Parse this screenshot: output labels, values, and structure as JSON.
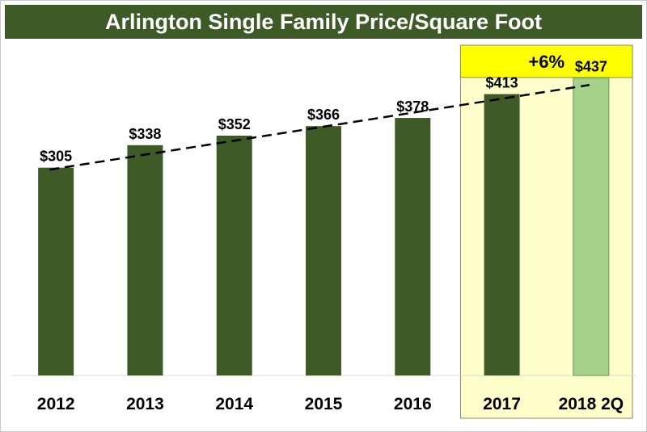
{
  "title": "Arlington Single Family Price/Square Foot",
  "colors": {
    "title_bg": "#3d5a27",
    "bar": "#3d5a27",
    "bar_highlight": "#a6d18a",
    "highlight_region": "#ffffcc",
    "highlight_banner": "#ffff00"
  },
  "chart_data": {
    "type": "bar",
    "title": "Arlington Single Family Price/Square Foot",
    "categories": [
      "2012",
      "2013",
      "2014",
      "2015",
      "2016",
      "2017",
      "2018 2Q"
    ],
    "values": [
      305,
      338,
      352,
      366,
      378,
      413,
      437
    ],
    "value_labels": [
      "$305",
      "$338",
      "$352",
      "$366",
      "$378",
      "$413",
      "$437"
    ],
    "highlight_categories": [
      "2017",
      "2018 2Q"
    ],
    "highlight_annotation": "+6%",
    "trendline": "linear dashed",
    "grid": false,
    "legend": "none",
    "ylim": [
      0,
      480
    ]
  }
}
